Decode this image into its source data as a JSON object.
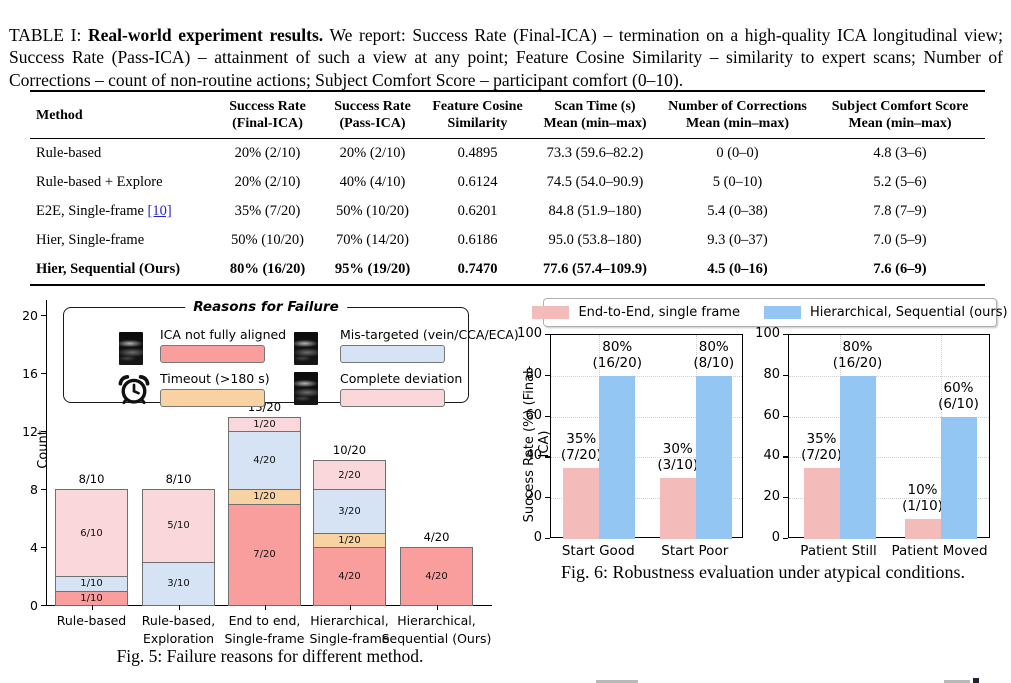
{
  "table_caption": {
    "prefix": "TABLE I:",
    "bold": "Real-world experiment results.",
    "rest": "We report: Success Rate (Final-ICA) – termination on a high-quality ICA longitudinal view; Success Rate (Pass-ICA) – attainment of such a view at any point; Feature Cosine Similarity – similarity to expert scans; Number of Corrections – count of non-routine actions; Subject Comfort Score – participant comfort (0–10)."
  },
  "table": {
    "headers": [
      {
        "line1": "Method",
        "line2": ""
      },
      {
        "line1": "Success Rate",
        "line2": "(Final-ICA)"
      },
      {
        "line1": "Success Rate",
        "line2": "(Pass-ICA)"
      },
      {
        "line1": "Feature Cosine",
        "line2": "Similarity"
      },
      {
        "line1": "Scan Time (s)",
        "line2": "Mean (min–max)"
      },
      {
        "line1": "Number of Corrections",
        "line2": "Mean (min–max)"
      },
      {
        "line1": "Subject Comfort Score",
        "line2": "Mean (min–max)"
      }
    ],
    "rows": [
      {
        "method": "Rule-based",
        "cite": "",
        "bold": false,
        "cells": [
          "20% (2/10)",
          "20% (2/10)",
          "0.4895",
          "73.3 (59.6–82.2)",
          "0 (0–0)",
          "4.8 (3–6)"
        ]
      },
      {
        "method": "Rule-based + Explore",
        "cite": "",
        "bold": false,
        "cells": [
          "20% (2/10)",
          "40% (4/10)",
          "0.6124",
          "74.5 (54.0–90.9)",
          "5 (0–10)",
          "5.2 (5–6)"
        ]
      },
      {
        "method": "E2E, Single-frame",
        "cite": "[10]",
        "bold": false,
        "cells": [
          "35% (7/20)",
          "50% (10/20)",
          "0.6201",
          "84.8 (51.9–180)",
          "5.4 (0–38)",
          "7.8 (7–9)"
        ]
      },
      {
        "method": "Hier, Single-frame",
        "cite": "",
        "bold": false,
        "cells": [
          "50% (10/20)",
          "70% (14/20)",
          "0.6186",
          "95.0 (53.8–180)",
          "9.3 (0–37)",
          "7.0 (5–9)"
        ]
      },
      {
        "method": "Hier, Sequential (Ours)",
        "cite": "",
        "bold": true,
        "cells": [
          "80% (16/20)",
          "95% (19/20)",
          "0.7470",
          "77.6 (57.4–109.9)",
          "4.5 (0–16)",
          "7.6 (6–9)"
        ]
      }
    ],
    "cite_color": "#2323cc"
  },
  "chart_data": [
    {
      "id": "fig5",
      "type": "bar",
      "subtype": "stacked",
      "legend_title": "Reasons for Failure",
      "ylabel": "Count",
      "ylim": [
        0,
        21
      ],
      "yticks": [
        0,
        4,
        8,
        12,
        16,
        20
      ],
      "grid": false,
      "categories": [
        [
          "Rule-based",
          ""
        ],
        [
          "Rule-based,",
          "Exploration"
        ],
        [
          "End to end,",
          "Single-frame"
        ],
        [
          "Hierarchical,",
          "Single-frame"
        ],
        [
          "Hierarchical,",
          "Sequential (Ours)"
        ]
      ],
      "totals": [
        "8/10",
        "8/10",
        "13/20",
        "10/20",
        "4/20"
      ],
      "series": [
        {
          "name": "ICA not fully aligned",
          "color": "#FA9D9D",
          "icon": "ultrasound-thumb",
          "values": [
            1,
            0,
            7,
            4,
            4
          ],
          "labels": [
            "1/10",
            "",
            "7/20",
            "4/20",
            "4/20"
          ]
        },
        {
          "name": "Timeout (>180 s)",
          "color": "#F8D2A2",
          "icon": "alarm-clock",
          "values": [
            0,
            0,
            1,
            1,
            0
          ],
          "labels": [
            "",
            "",
            "1/20",
            "1/20",
            ""
          ]
        },
        {
          "name": "Mis-targeted (vein/CCA/ECA)",
          "color": "#D5E3F5",
          "icon": "ultrasound-thumb",
          "values": [
            1,
            3,
            4,
            3,
            0
          ],
          "labels": [
            "1/10",
            "3/10",
            "4/20",
            "3/20",
            ""
          ]
        },
        {
          "name": "Complete deviation",
          "color": "#FAD7DA",
          "icon": "ultrasound-thumb",
          "values": [
            6,
            5,
            1,
            2,
            0
          ],
          "labels": [
            "6/10",
            "5/10",
            "1/20",
            "2/20",
            ""
          ]
        }
      ],
      "legend_order": [
        0,
        2,
        1,
        3
      ],
      "caption": "Fig. 5: Failure reasons for different method."
    },
    {
      "id": "fig6",
      "type": "bar",
      "subtype": "grouped",
      "legend": [
        {
          "name": "End-to-End, single frame",
          "color": "#F3BBB9"
        },
        {
          "name": "Hierarchical, Sequential (ours)",
          "color": "#93C6F3"
        }
      ],
      "ylabel": "Success Rate (%) (Final-ICA)",
      "ylim": [
        0,
        100
      ],
      "yticks": [
        0,
        20,
        40,
        60,
        80,
        100
      ],
      "grid": true,
      "subplots": [
        {
          "categories": [
            "Start Good",
            "Start Poor"
          ],
          "series": [
            {
              "name": "End-to-End, single frame",
              "values": [
                35,
                30
              ],
              "annotations": [
                [
                  "35%",
                  "(7/20)"
                ],
                [
                  "30%",
                  "(3/10)"
                ]
              ]
            },
            {
              "name": "Hierarchical, Sequential (ours)",
              "values": [
                80,
                80
              ],
              "annotations": [
                [
                  "80%",
                  "(16/20)"
                ],
                [
                  "80%",
                  "(8/10)"
                ]
              ]
            }
          ]
        },
        {
          "categories": [
            "Patient Still",
            "Patient Moved"
          ],
          "series": [
            {
              "name": "End-to-End, single frame",
              "values": [
                35,
                10
              ],
              "annotations": [
                [
                  "35%",
                  "(7/20)"
                ],
                [
                  "10%",
                  "(1/10)"
                ]
              ]
            },
            {
              "name": "Hierarchical, Sequential (ours)",
              "values": [
                80,
                60
              ],
              "annotations": [
                [
                  "80%",
                  "(16/20)"
                ],
                [
                  "60%",
                  "(6/10)"
                ]
              ]
            }
          ]
        }
      ],
      "caption": "Fig. 6: Robustness evaluation under atypical conditions."
    }
  ]
}
